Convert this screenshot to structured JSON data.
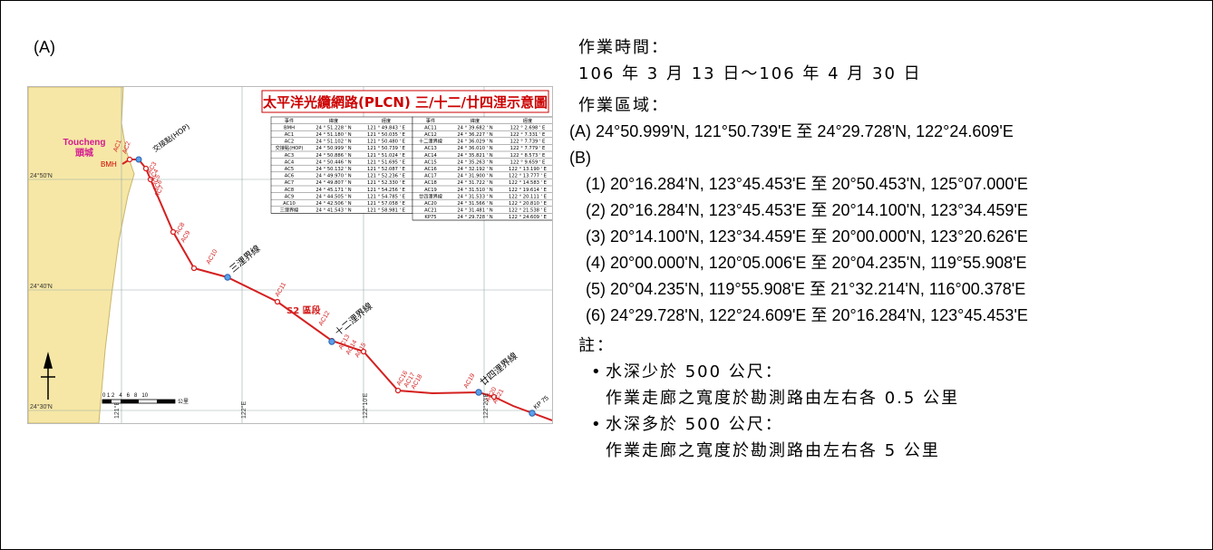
{
  "panel_label": "(A)",
  "map": {
    "title": "太平洋光纜網路(PLCN) 三/十二/廿四浬示意圖",
    "place_en": "Toucheng",
    "place_zh": "頭城",
    "lat_labels": [
      "24°50'N",
      "24°40'N",
      "24°30'N"
    ],
    "lon_labels": [
      "121°E",
      "122°E",
      "122°10'E",
      "122°20'E"
    ],
    "scale_ticks": "0 1 2   4   6   8   10",
    "scale_unit": "公里",
    "route_text": {
      "bmh": "BMH",
      "hop": "交接點(HOP)",
      "nm3": "三浬界線",
      "nm12": "十二浬界線",
      "nm24": "廿四浬界線",
      "s2": "S2 區段",
      "kp": "KP 75"
    },
    "points": [
      "AC1",
      "AC2",
      "AC3",
      "AC4",
      "AC5",
      "AC6",
      "AC7",
      "AC8",
      "AC9",
      "AC10",
      "AC11",
      "AC12",
      "AC13",
      "AC14",
      "AC15",
      "AC16",
      "AC17",
      "AC18",
      "AC19",
      "AC20",
      "AC21"
    ],
    "table_headers": [
      "事件",
      "緯度",
      "經度"
    ],
    "table_left": [
      [
        "BMH",
        "24 ° 51.228 ' N",
        "121 ° 49.843 ' E"
      ],
      [
        "AC1",
        "24 ° 51.180 ' N",
        "121 ° 50.035 ' E"
      ],
      [
        "AC2",
        "24 ° 51.102 ' N",
        "121 ° 50.480 ' E"
      ],
      [
        "交接點(HOP)",
        "24 ° 50.999 ' N",
        "121 ° 50.739 ' E"
      ],
      [
        "AC3",
        "24 ° 50.886 ' N",
        "121 ° 51.024 ' E"
      ],
      [
        "AC4",
        "24 ° 50.446 ' N",
        "121 ° 51.695 ' E"
      ],
      [
        "AC5",
        "24 ° 50.132 ' N",
        "121 ° 52.087 ' E"
      ],
      [
        "AC6",
        "24 ° 49.970 ' N",
        "121 ° 52.236 ' E"
      ],
      [
        "AC7",
        "24 ° 49.807 ' N",
        "121 ° 52.330 ' E"
      ],
      [
        "AC8",
        "24 ° 45.171 ' N",
        "121 ° 54.256 ' E"
      ],
      [
        "AC9",
        "24 ° 44.505 ' N",
        "121 ° 54.785 ' E"
      ],
      [
        "AC10",
        "24 ° 42.506 ' N",
        "121 ° 57.058 ' E"
      ],
      [
        "三浬界線",
        "24 ° 41.543 ' N",
        "121 ° 58.981 ' E"
      ]
    ],
    "table_right": [
      [
        "AC11",
        "24 ° 39.682 ' N",
        "122 ° 2.698 ' E"
      ],
      [
        "AC12",
        "24 ° 36.227 ' N",
        "122 ° 7.331 ' E"
      ],
      [
        "十二浬界線",
        "24 ° 36.029 ' N",
        "122 ° 7.739 ' E"
      ],
      [
        "AC13",
        "24 ° 36.010 ' N",
        "122 ° 7.779 ' E"
      ],
      [
        "AC14",
        "24 ° 35.821 ' N",
        "122 ° 8.573 ' E"
      ],
      [
        "AC15",
        "24 ° 35.263 ' N",
        "122 ° 9.659 ' E"
      ],
      [
        "AC16",
        "24 ° 32.192 ' N",
        "122 ° 13.190 ' E"
      ],
      [
        "AC17",
        "24 ° 31.900 ' N",
        "122 ° 13.777 ' E"
      ],
      [
        "AC18",
        "24 ° 31.722 ' N",
        "122 ° 14.583 ' E"
      ],
      [
        "AC19",
        "24 ° 31.510 ' N",
        "122 ° 19.614 ' E"
      ],
      [
        "廿四浬界線",
        "24 ° 31.533 ' N",
        "122 ° 20.111 ' E"
      ],
      [
        "AC20",
        "24 ° 31.566 ' N",
        "122 ° 20.810 ' E"
      ],
      [
        "AC21",
        "24 ° 31.481 ' N",
        "122 ° 21.538 ' E"
      ],
      [
        "KP75",
        "24 ° 29.728 ' N",
        "122 ° 24.609 ' E"
      ]
    ]
  },
  "text": {
    "time_label": "作業時間：",
    "time_value": "106 年 3 月 13 日～106 年 4 月 30 日",
    "area_label": "作業區域：",
    "area_a": "(A)  24°50.999'N, 121°50.739'E 至 24°29.728'N, 122°24.609'E",
    "area_b": "(B)",
    "b_items": [
      "(1)  20°16.284'N, 123°45.453'E 至 20°50.453'N, 125°07.000'E",
      "(2)  20°16.284'N, 123°45.453'E 至 20°14.100'N, 123°34.459'E",
      "(3)  20°14.100'N, 123°34.459'E 至 20°00.000'N, 123°20.626'E",
      "(4)  20°00.000'N, 120°05.006'E 至 20°04.235'N, 119°55.908'E",
      "(5)  20°04.235'N, 119°55.908'E 至 21°32.214'N, 116°00.378'E",
      "(6)  24°29.728'N, 122°24.609'E 至 20°16.284'N, 123°45.453'E"
    ],
    "note_label": "註：",
    "notes": [
      {
        "head": "水深少於 500 公尺：",
        "body": "作業走廊之寬度於勘測路由左右各 0.5 公里"
      },
      {
        "head": "水深多於 500 公尺：",
        "body": "作業走廊之寬度於勘測路由左右各 5 公里"
      }
    ],
    "bullet": "•"
  }
}
